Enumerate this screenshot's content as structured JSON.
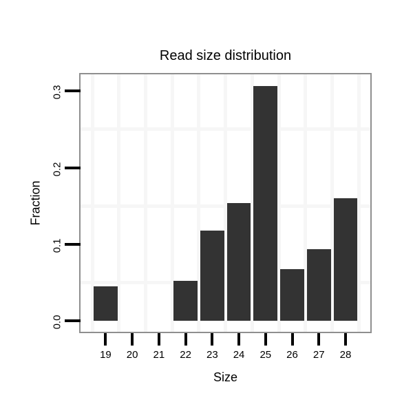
{
  "chart_data": {
    "type": "bar",
    "title": "Read size distribution",
    "xlabel": "Size",
    "ylabel": "Fraction",
    "categories": [
      19,
      20,
      21,
      22,
      23,
      24,
      25,
      26,
      27,
      28
    ],
    "values": [
      0.045,
      0,
      0,
      0.052,
      0.118,
      0.154,
      0.307,
      0.067,
      0.093,
      0.16
    ],
    "x_tick_labels": [
      "19",
      "20",
      "21",
      "22",
      "23",
      "24",
      "25",
      "26",
      "27",
      "28"
    ],
    "y_tick_values": [
      0.0,
      0.1,
      0.2,
      0.3
    ],
    "y_tick_labels": [
      "0.0",
      "0.1",
      "0.2",
      "0.3"
    ],
    "xlim": [
      18.06,
      28.93
    ],
    "ylim": [
      -0.0147,
      0.322
    ],
    "bar_width_units": 0.9,
    "grid": {
      "mode": "minor-only",
      "minor_x": [
        18.5,
        19.5,
        20.5,
        21.5,
        22.5,
        23.5,
        24.5,
        25.5,
        26.5,
        27.5,
        28.5
      ],
      "minor_y": [
        0.05,
        0.15,
        0.25
      ]
    },
    "legend": "none",
    "colors": {
      "bar": "#333333",
      "panel_border": "#8f8f8f",
      "grid_minor": "#f6f6f6",
      "tick": "#000000",
      "text": "#000000",
      "background": "#ffffff"
    }
  }
}
